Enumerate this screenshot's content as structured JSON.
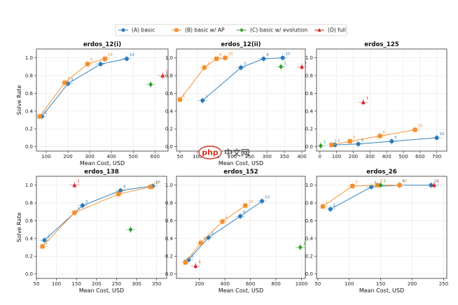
{
  "colors": {
    "basic": "#2b7bba",
    "basic_ap": "#f28e2b",
    "basic_evolution": "#2ca02c",
    "full": "#d62728"
  },
  "legend": {
    "items": [
      {
        "key": "basic",
        "label": "(A) basic",
        "marker": "circle"
      },
      {
        "key": "basic_ap",
        "label": "(B) basic w/ AP",
        "marker": "square"
      },
      {
        "key": "basic_evolution",
        "label": "(C) basic w/ evolution",
        "marker": "diamond"
      },
      {
        "key": "full",
        "label": "(D) full",
        "marker": "triangle"
      }
    ]
  },
  "watermark": {
    "text": "php",
    "cn": "中文网"
  },
  "chart_data": [
    {
      "type": "scatter",
      "title": "erdos_12(i)",
      "xlabel": "Mean Cost, USD",
      "ylabel": "Solve Rate",
      "xlim": [
        55,
        660
      ],
      "ylim": [
        -0.05,
        1.1
      ],
      "xticks": [
        100,
        200,
        300,
        400,
        500,
        600
      ],
      "yticks": [
        0.0,
        0.2,
        0.4,
        0.6,
        0.8,
        1.0
      ],
      "series": [
        {
          "key": "basic",
          "points": [
            {
              "x": 80,
              "y": 0.34,
              "label": "1"
            },
            {
              "x": 200,
              "y": 0.71,
              "label": "3"
            },
            {
              "x": 350,
              "y": 0.93,
              "label": "5"
            },
            {
              "x": 470,
              "y": 0.99,
              "label": "10"
            }
          ]
        },
        {
          "key": "basic_ap",
          "points": [
            {
              "x": 70,
              "y": 0.34,
              "label": "1"
            },
            {
              "x": 185,
              "y": 0.72,
              "label": "3"
            },
            {
              "x": 290,
              "y": 0.93,
              "label": "5"
            },
            {
              "x": 370,
              "y": 0.99,
              "label": "10"
            }
          ]
        },
        {
          "key": "basic_evolution",
          "points": [
            {
              "x": 580,
              "y": 0.7,
              "label": ""
            }
          ]
        },
        {
          "key": "full",
          "points": [
            {
              "x": 635,
              "y": 0.8,
              "label": "1"
            }
          ]
        }
      ]
    },
    {
      "type": "scatter",
      "title": "erdos_12(ii)",
      "xlabel": "Mean Cost, USD",
      "ylabel": "",
      "xlim": [
        40,
        410
      ],
      "ylim": [
        -0.05,
        1.1
      ],
      "xticks": [
        50,
        100,
        150,
        200,
        250,
        300,
        350,
        400
      ],
      "yticks": [
        0.0,
        0.2,
        0.4,
        0.6,
        0.8,
        1.0
      ],
      "series": [
        {
          "key": "basic",
          "points": [
            {
              "x": 115,
              "y": 0.52,
              "label": "1"
            },
            {
              "x": 225,
              "y": 0.89,
              "label": "3"
            },
            {
              "x": 290,
              "y": 0.99,
              "label": "6"
            },
            {
              "x": 345,
              "y": 1.0,
              "label": "10"
            }
          ]
        },
        {
          "key": "basic_ap",
          "points": [
            {
              "x": 50,
              "y": 0.53,
              "label": "1"
            },
            {
              "x": 120,
              "y": 0.89,
              "label": "3"
            },
            {
              "x": 155,
              "y": 0.99,
              "label": "6"
            },
            {
              "x": 180,
              "y": 1.0,
              "label": "10"
            }
          ]
        },
        {
          "key": "basic_evolution",
          "points": [
            {
              "x": 340,
              "y": 0.9,
              "label": "1"
            }
          ]
        },
        {
          "key": "full",
          "points": [
            {
              "x": 400,
              "y": 0.9,
              "label": "1"
            }
          ]
        }
      ]
    },
    {
      "type": "scatter",
      "title": "erdos_125",
      "xlabel": "",
      "ylabel": "",
      "xlim": [
        -20,
        760
      ],
      "ylim": [
        -0.05,
        1.1
      ],
      "xticks": [
        0,
        100,
        200,
        300,
        400,
        500,
        600,
        700
      ],
      "yticks": [
        0.0,
        0.2,
        0.4,
        0.6,
        0.8,
        1.0
      ],
      "series": [
        {
          "key": "basic",
          "points": [
            {
              "x": 90,
              "y": 0.02,
              "label": "1"
            },
            {
              "x": 230,
              "y": 0.03,
              "label": "3"
            },
            {
              "x": 430,
              "y": 0.06,
              "label": "5"
            },
            {
              "x": 700,
              "y": 0.1,
              "label": "10"
            }
          ]
        },
        {
          "key": "basic_ap",
          "points": [
            {
              "x": 70,
              "y": 0.02,
              "label": "1"
            },
            {
              "x": 180,
              "y": 0.06,
              "label": "3"
            },
            {
              "x": 360,
              "y": 0.12,
              "label": "6"
            },
            {
              "x": 570,
              "y": 0.19,
              "label": "10"
            }
          ]
        },
        {
          "key": "basic_evolution",
          "points": [
            {
              "x": 5,
              "y": 0.01,
              "label": "1"
            }
          ]
        },
        {
          "key": "full",
          "points": [
            {
              "x": 260,
              "y": 0.5,
              "label": "1"
            }
          ]
        }
      ]
    },
    {
      "type": "scatter",
      "title": "erdos_138",
      "xlabel": "Mean Cost, USD",
      "ylabel": "Solve Rate",
      "xlim": [
        50,
        375
      ],
      "ylim": [
        -0.05,
        1.1
      ],
      "xticks": [
        50,
        100,
        150,
        200,
        250,
        300,
        350
      ],
      "yticks": [
        0.0,
        0.2,
        0.4,
        0.6,
        0.8,
        1.0
      ],
      "series": [
        {
          "key": "basic",
          "points": [
            {
              "x": 70,
              "y": 0.38,
              "label": "1"
            },
            {
              "x": 165,
              "y": 0.77,
              "label": "3"
            },
            {
              "x": 260,
              "y": 0.94,
              "label": "6"
            },
            {
              "x": 340,
              "y": 0.99,
              "label": "10"
            }
          ]
        },
        {
          "key": "basic_ap",
          "points": [
            {
              "x": 65,
              "y": 0.31,
              "label": "1"
            },
            {
              "x": 145,
              "y": 0.69,
              "label": "3"
            },
            {
              "x": 255,
              "y": 0.9,
              "label": "6"
            },
            {
              "x": 335,
              "y": 0.98,
              "label": "10"
            }
          ]
        },
        {
          "key": "basic_evolution",
          "points": [
            {
              "x": 285,
              "y": 0.5,
              "label": ""
            }
          ]
        },
        {
          "key": "full",
          "points": [
            {
              "x": 145,
              "y": 1.0,
              "label": "1"
            }
          ]
        }
      ]
    },
    {
      "type": "scatter",
      "title": "erdos_152",
      "xlabel": "Mean Cost, USD",
      "ylabel": "",
      "xlim": [
        20,
        1030
      ],
      "ylim": [
        -0.05,
        1.1
      ],
      "xticks": [
        200,
        400,
        600,
        800,
        1000
      ],
      "yticks": [
        0.0,
        0.2,
        0.4,
        0.6,
        0.8,
        1.0
      ],
      "series": [
        {
          "key": "basic",
          "points": [
            {
              "x": 115,
              "y": 0.16,
              "label": "1"
            },
            {
              "x": 270,
              "y": 0.41,
              "label": "3"
            },
            {
              "x": 520,
              "y": 0.65,
              "label": "6"
            },
            {
              "x": 690,
              "y": 0.82,
              "label": "10"
            }
          ]
        },
        {
          "key": "basic_ap",
          "points": [
            {
              "x": 90,
              "y": 0.13,
              "label": "1"
            },
            {
              "x": 210,
              "y": 0.35,
              "label": "3"
            },
            {
              "x": 380,
              "y": 0.59,
              "label": "6"
            },
            {
              "x": 560,
              "y": 0.77,
              "label": "10"
            }
          ]
        },
        {
          "key": "basic_evolution",
          "points": [
            {
              "x": 990,
              "y": 0.3,
              "label": "1"
            }
          ]
        },
        {
          "key": "full",
          "points": [
            {
              "x": 170,
              "y": 0.09,
              "label": "1"
            }
          ]
        }
      ]
    },
    {
      "type": "scatter",
      "title": "erdos_26",
      "xlabel": "Mean Cost, USD",
      "ylabel": "",
      "xlim": [
        48,
        255
      ],
      "ylim": [
        -0.05,
        1.1
      ],
      "xticks": [
        50,
        100,
        150,
        200,
        250
      ],
      "yticks": [
        0.0,
        0.2,
        0.4,
        0.6,
        0.8,
        1.0
      ],
      "series": [
        {
          "key": "basic",
          "points": [
            {
              "x": 70,
              "y": 0.73,
              "label": "1"
            },
            {
              "x": 135,
              "y": 0.98,
              "label": "3"
            },
            {
              "x": 180,
              "y": 1.0,
              "label": "6"
            },
            {
              "x": 230,
              "y": 1.0,
              "label": "10"
            }
          ]
        },
        {
          "key": "basic_ap",
          "points": [
            {
              "x": 58,
              "y": 0.76,
              "label": "1"
            },
            {
              "x": 105,
              "y": 0.99,
              "label": "3"
            },
            {
              "x": 145,
              "y": 1.0,
              "label": "5"
            },
            {
              "x": 180,
              "y": 1.0,
              "label": "10"
            }
          ]
        },
        {
          "key": "basic_evolution",
          "points": [
            {
              "x": 150,
              "y": 1.0,
              "label": "1"
            }
          ]
        },
        {
          "key": "full",
          "points": [
            {
              "x": 235,
              "y": 1.0,
              "label": "1"
            }
          ]
        }
      ]
    }
  ]
}
